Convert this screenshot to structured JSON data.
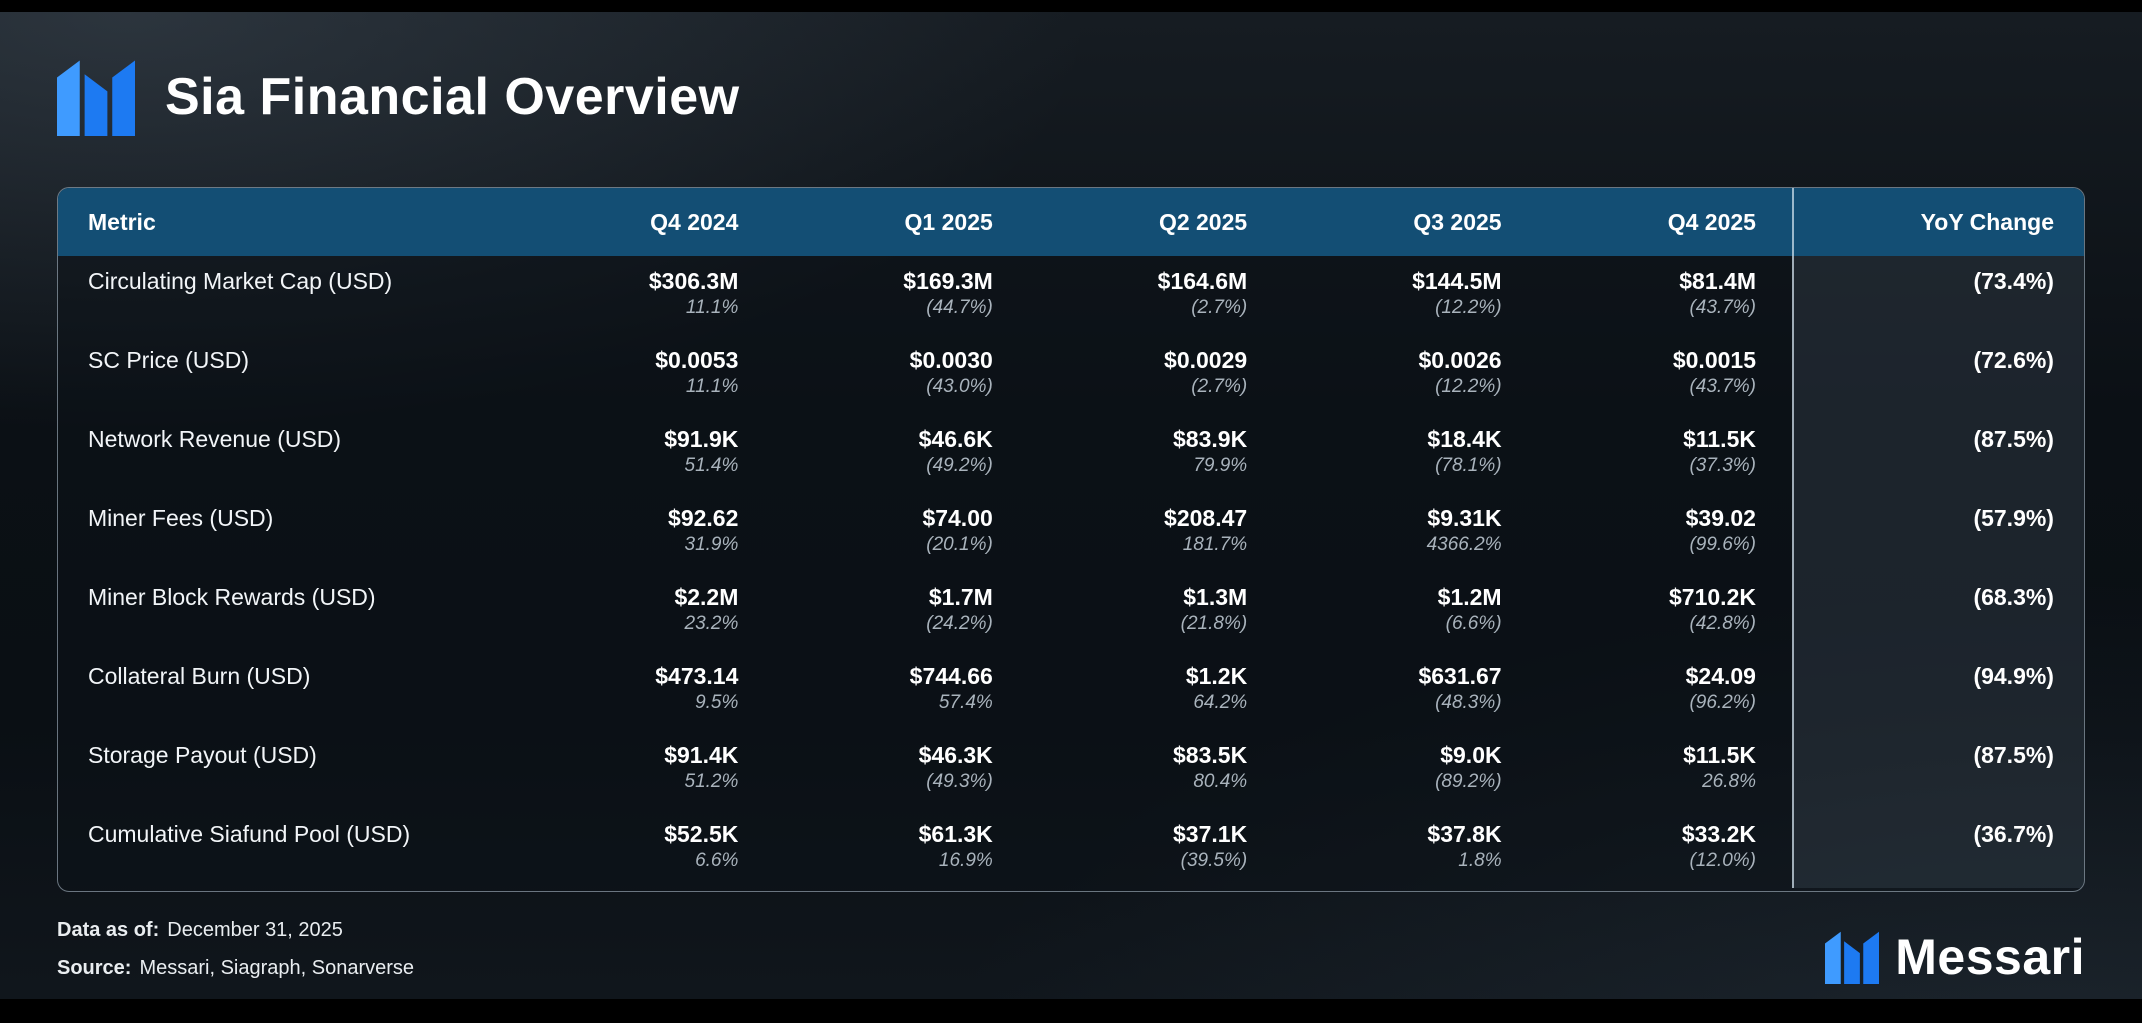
{
  "header": {
    "title": "Sia Financial Overview"
  },
  "footer": {
    "data_as_of_label": "Data as of:",
    "data_as_of_value": "December 31, 2025",
    "source_label": "Source:",
    "source_value": "Messari, Siagraph, Sonarverse",
    "brand_wordmark": "Messari"
  },
  "colors": {
    "accent_blue": "#1d7af2",
    "accent_blue_light": "#3f9bff",
    "header_row_blue": "#134e74",
    "change_text_gray": "#a9b3bc",
    "background_dark": "#0a0f14"
  },
  "icons": {
    "brand_logo": "messari-logo"
  },
  "chart_data": {
    "type": "table",
    "title": "Sia Financial Overview",
    "columns": [
      "Metric",
      "Q4 2024",
      "Q1 2025",
      "Q2 2025",
      "Q3 2025",
      "Q4 2025",
      "YoY Change"
    ],
    "rows": [
      {
        "metric": "Circulating Market Cap (USD)",
        "values": [
          "$306.3M",
          "$169.3M",
          "$164.6M",
          "$144.5M",
          "$81.4M"
        ],
        "changes": [
          "11.1%",
          "(44.7%)",
          "(2.7%)",
          "(12.2%)",
          "(43.7%)"
        ],
        "yoy": "(73.4%)"
      },
      {
        "metric": "SC Price (USD)",
        "values": [
          "$0.0053",
          "$0.0030",
          "$0.0029",
          "$0.0026",
          "$0.0015"
        ],
        "changes": [
          "11.1%",
          "(43.0%)",
          "(2.7%)",
          "(12.2%)",
          "(43.7%)"
        ],
        "yoy": "(72.6%)"
      },
      {
        "metric": "Network Revenue (USD)",
        "values": [
          "$91.9K",
          "$46.6K",
          "$83.9K",
          "$18.4K",
          "$11.5K"
        ],
        "changes": [
          "51.4%",
          "(49.2%)",
          "79.9%",
          "(78.1%)",
          "(37.3%)"
        ],
        "yoy": "(87.5%)"
      },
      {
        "metric": "Miner Fees (USD)",
        "values": [
          "$92.62",
          "$74.00",
          "$208.47",
          "$9.31K",
          "$39.02"
        ],
        "changes": [
          "31.9%",
          "(20.1%)",
          "181.7%",
          "4366.2%",
          "(99.6%)"
        ],
        "yoy": "(57.9%)"
      },
      {
        "metric": "Miner Block Rewards (USD)",
        "values": [
          "$2.2M",
          "$1.7M",
          "$1.3M",
          "$1.2M",
          "$710.2K"
        ],
        "changes": [
          "23.2%",
          "(24.2%)",
          "(21.8%)",
          "(6.6%)",
          "(42.8%)"
        ],
        "yoy": "(68.3%)"
      },
      {
        "metric": "Collateral Burn (USD)",
        "values": [
          "$473.14",
          "$744.66",
          "$1.2K",
          "$631.67",
          "$24.09"
        ],
        "changes": [
          "9.5%",
          "57.4%",
          "64.2%",
          "(48.3%)",
          "(96.2%)"
        ],
        "yoy": "(94.9%)"
      },
      {
        "metric": "Storage Payout (USD)",
        "values": [
          "$91.4K",
          "$46.3K",
          "$83.5K",
          "$9.0K",
          "$11.5K"
        ],
        "changes": [
          "51.2%",
          "(49.3%)",
          "80.4%",
          "(89.2%)",
          "26.8%"
        ],
        "yoy": "(87.5%)"
      },
      {
        "metric": "Cumulative Siafund Pool (USD)",
        "values": [
          "$52.5K",
          "$61.3K",
          "$37.1K",
          "$37.8K",
          "$33.2K"
        ],
        "changes": [
          "6.6%",
          "16.9%",
          "(39.5%)",
          "1.8%",
          "(12.0%)"
        ],
        "yoy": "(36.7%)"
      }
    ],
    "notes": {
      "data_as_of": "December 31, 2025",
      "source": "Messari, Siagraph, Sonarverse"
    },
    "layout": {
      "grid": "off",
      "yoy_column_separated": true
    }
  }
}
